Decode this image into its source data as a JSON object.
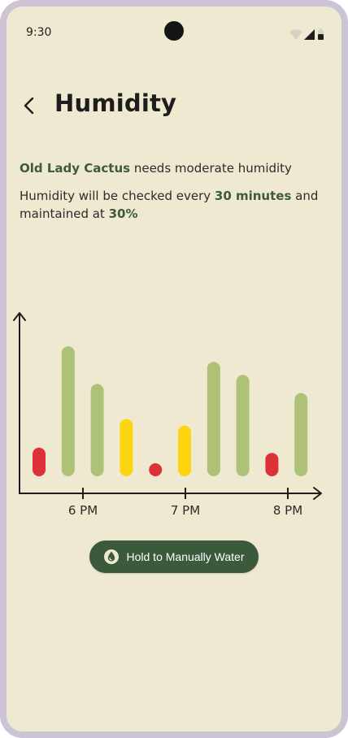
{
  "status_bar": {
    "time": "9:30"
  },
  "header": {
    "title": "Humidity",
    "back_icon": "chevron-left-icon"
  },
  "description": {
    "plant_name": "Old Lady Cactus",
    "line1_rest": " needs moderate humidity",
    "line2_prefix": "Humidity will be checked every ",
    "interval": "30 minutes",
    "line2_mid": " and maintained at ",
    "target": "30%"
  },
  "colors": {
    "background": "#f0e9d2",
    "accent": "#3d5a3a",
    "bar_good": "#adc277",
    "bar_warn": "#fcd40f",
    "bar_bad": "#db3137"
  },
  "chart_data": {
    "type": "bar",
    "x_ticks": [
      "6 PM",
      "7 PM",
      "8 PM"
    ],
    "bars": [
      {
        "level": 0.22,
        "status": "bad"
      },
      {
        "level": 1.0,
        "status": "good"
      },
      {
        "level": 0.71,
        "status": "good"
      },
      {
        "level": 0.44,
        "status": "warn"
      },
      {
        "level": 0.08,
        "status": "bad"
      },
      {
        "level": 0.39,
        "status": "warn"
      },
      {
        "level": 0.88,
        "status": "good"
      },
      {
        "level": 0.78,
        "status": "good"
      },
      {
        "level": 0.18,
        "status": "bad"
      },
      {
        "level": 0.64,
        "status": "good"
      }
    ],
    "xlabel": "",
    "ylabel": ""
  },
  "actions": {
    "manual_water_label": "Hold to Manually Water",
    "manual_water_icon": "water-drop-icon"
  }
}
